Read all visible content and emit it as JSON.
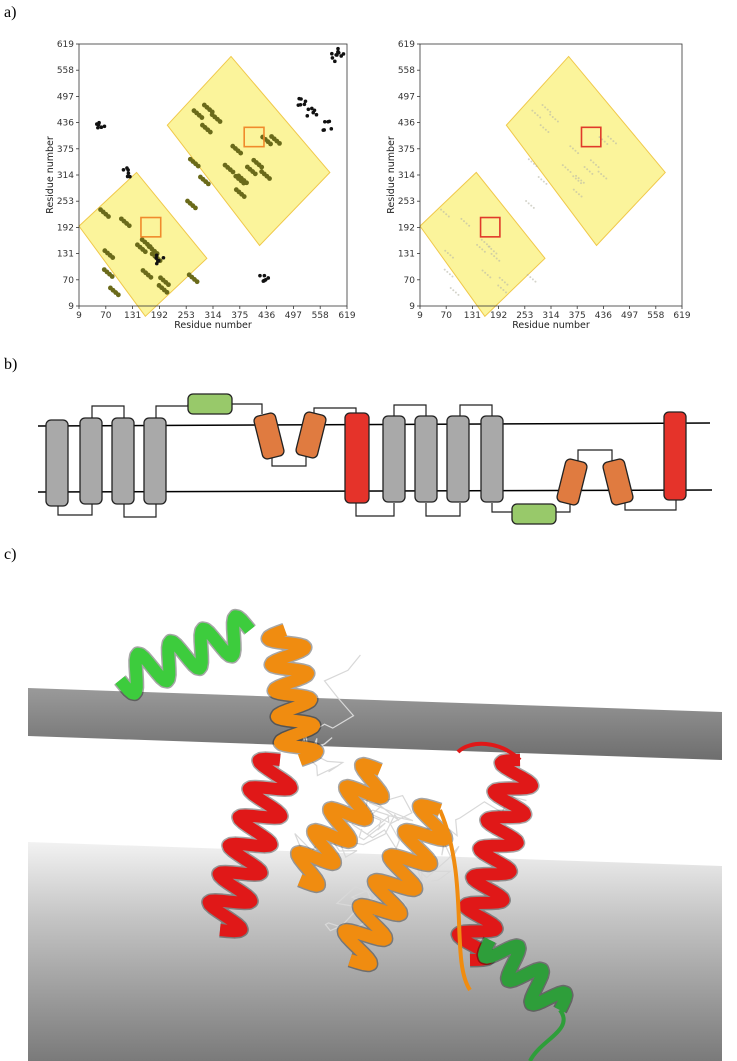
{
  "panels": {
    "a": {
      "label": "a)"
    },
    "b": {
      "label": "b)"
    },
    "c": {
      "label": "c)"
    }
  },
  "chart_data": [
    {
      "type": "scatter",
      "title": "",
      "xlabel": "Residue number",
      "ylabel": "Residue number",
      "ticks": [
        9,
        70,
        131,
        192,
        253,
        314,
        375,
        436,
        497,
        558,
        619
      ],
      "xlim": [
        9,
        619
      ],
      "ylim": [
        9,
        619
      ],
      "contact_style": "filled",
      "highlight_boxes": [
        {
          "x": [
            150,
            195
          ],
          "y": [
            170,
            215
          ],
          "color": "#f08a2c"
        },
        {
          "x": [
            385,
            430
          ],
          "y": [
            380,
            425
          ],
          "color": "#f08a2c"
        }
      ]
    },
    {
      "type": "scatter",
      "title": "",
      "xlabel": "Residue number",
      "ylabel": "Residue number",
      "ticks": [
        9,
        70,
        131,
        192,
        253,
        314,
        375,
        436,
        497,
        558,
        619
      ],
      "xlim": [
        9,
        619
      ],
      "ylim": [
        9,
        619
      ],
      "contact_style": "faint",
      "highlight_boxes": [
        {
          "x": [
            150,
            195
          ],
          "y": [
            170,
            215
          ],
          "color": "#e03a2a"
        },
        {
          "x": [
            385,
            430
          ],
          "y": [
            380,
            425
          ],
          "color": "#e03a2a"
        }
      ]
    }
  ],
  "topology": {
    "colors": {
      "tm": "#a9a9a9",
      "reentrant": "#e07b40",
      "red_helix": "#e5332a",
      "amphipathic": "#98c96a"
    }
  },
  "structure": {
    "colors": {
      "green_helix": "#3dcc3d",
      "orange_helix": "#f08c10",
      "red_helix": "#e01818",
      "membrane": "#8a8a8a"
    }
  }
}
